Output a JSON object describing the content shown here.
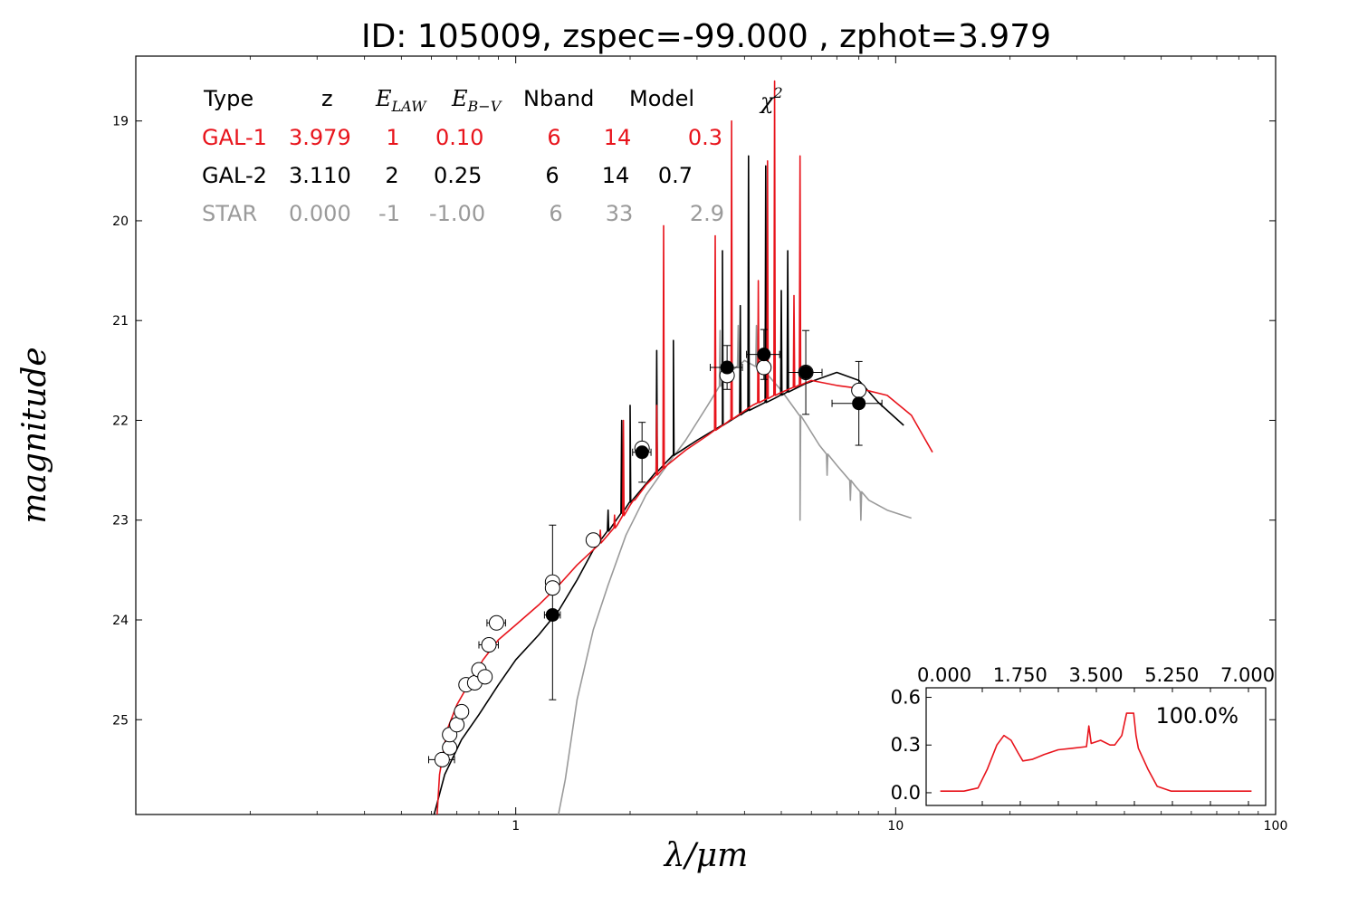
{
  "chart_data": {
    "type": "line",
    "title": "ID:  105009, zspec=-99.000 , zphot=3.979",
    "xlabel": "λ/μm",
    "ylabel": "magnitude",
    "xscale": "log",
    "xlim": [
      0.1,
      100
    ],
    "ylim": [
      25.95,
      18.35
    ],
    "x_ticks": [
      1,
      10,
      100
    ],
    "x_tick_labels": [
      "1",
      "10",
      "100"
    ],
    "y_ticks": [
      19,
      20,
      21,
      22,
      23,
      24,
      25
    ],
    "y_tick_labels": [
      "19",
      "20",
      "21",
      "22",
      "23",
      "24",
      "25"
    ],
    "colors": {
      "gal1": "#e8141c",
      "gal2": "#000000",
      "star": "#9a9a9a"
    },
    "table": {
      "headers": [
        "Type",
        "z",
        "E_LAW",
        "E_B-V",
        "Nband",
        "Model",
        "χ²"
      ],
      "header_math": {
        "elaw_main": "E",
        "elaw_sub": "LAW",
        "ebv_main": "E",
        "ebv_sub": "B−V",
        "chi_main": "χ",
        "chi_sup": "2"
      },
      "rows": [
        {
          "type": "GAL-1",
          "z": "3.979",
          "elaw": "1",
          "ebv": "0.10",
          "nband": "6",
          "model": "14",
          "chi2": "0.3",
          "color": "#e8141c"
        },
        {
          "type": "GAL-2",
          "z": "3.110",
          "elaw": "2",
          "ebv": "0.25",
          "nband": "6",
          "model": "14",
          "chi2": "0.7",
          "color": "#000000"
        },
        {
          "type": "STAR",
          "z": "0.000",
          "elaw": "-1",
          "ebv": "-1.00",
          "nband": "6",
          "model": "33",
          "chi2": "2.9",
          "color": "#9a9a9a"
        }
      ]
    },
    "series": [
      {
        "name": "GAL-1",
        "color": "#e8141c",
        "points": [
          [
            0.62,
            26.0
          ],
          [
            0.63,
            25.55
          ],
          [
            0.66,
            25.1
          ],
          [
            0.7,
            24.85
          ],
          [
            0.75,
            24.65
          ],
          [
            0.82,
            24.4
          ],
          [
            0.9,
            24.2
          ],
          [
            1.0,
            24.05
          ],
          [
            1.15,
            23.85
          ],
          [
            1.3,
            23.65
          ],
          [
            1.45,
            23.45
          ],
          [
            1.65,
            23.25
          ],
          [
            1.85,
            23.05
          ],
          [
            2.0,
            22.85
          ],
          [
            2.2,
            22.65
          ],
          [
            2.5,
            22.45
          ],
          [
            2.8,
            22.3
          ],
          [
            3.2,
            22.15
          ],
          [
            3.6,
            22.02
          ],
          [
            4.2,
            21.85
          ],
          [
            5.0,
            21.72
          ],
          [
            6.0,
            21.6
          ],
          [
            7.0,
            21.65
          ],
          [
            8.0,
            21.68
          ],
          [
            9.5,
            21.75
          ],
          [
            11.0,
            21.95
          ],
          [
            12.5,
            22.32
          ]
        ],
        "spikes": [
          [
            1.67,
            23.1
          ],
          [
            1.82,
            22.95
          ],
          [
            1.92,
            22.0
          ],
          [
            2.05,
            22.8
          ],
          [
            2.35,
            21.85
          ],
          [
            2.45,
            20.05
          ],
          [
            3.35,
            20.15
          ],
          [
            3.7,
            19.0
          ],
          [
            4.35,
            20.6
          ],
          [
            4.6,
            19.4
          ],
          [
            4.8,
            18.6
          ],
          [
            5.4,
            20.75
          ],
          [
            5.6,
            19.35
          ]
        ]
      },
      {
        "name": "GAL-2",
        "color": "#000000",
        "points": [
          [
            0.6,
            26.05
          ],
          [
            0.65,
            25.55
          ],
          [
            0.72,
            25.2
          ],
          [
            0.8,
            24.95
          ],
          [
            0.9,
            24.65
          ],
          [
            1.0,
            24.4
          ],
          [
            1.15,
            24.15
          ],
          [
            1.3,
            23.9
          ],
          [
            1.45,
            23.6
          ],
          [
            1.6,
            23.3
          ],
          [
            1.8,
            23.05
          ],
          [
            2.0,
            22.82
          ],
          [
            2.3,
            22.55
          ],
          [
            2.6,
            22.35
          ],
          [
            3.0,
            22.2
          ],
          [
            3.5,
            22.05
          ],
          [
            4.0,
            21.92
          ],
          [
            4.8,
            21.78
          ],
          [
            5.8,
            21.63
          ],
          [
            7.0,
            21.52
          ],
          [
            8.0,
            21.6
          ],
          [
            9.0,
            21.82
          ],
          [
            10.5,
            22.05
          ]
        ],
        "spikes": [
          [
            1.75,
            22.9
          ],
          [
            1.9,
            22.0
          ],
          [
            2.0,
            21.85
          ],
          [
            2.35,
            21.3
          ],
          [
            2.6,
            21.2
          ],
          [
            3.5,
            20.3
          ],
          [
            3.9,
            20.85
          ],
          [
            4.1,
            19.35
          ],
          [
            4.55,
            19.45
          ],
          [
            5.0,
            20.7
          ],
          [
            5.2,
            20.3
          ]
        ]
      },
      {
        "name": "STAR",
        "color": "#9a9a9a",
        "points": [
          [
            1.28,
            26.05
          ],
          [
            1.35,
            25.6
          ],
          [
            1.45,
            24.8
          ],
          [
            1.6,
            24.1
          ],
          [
            1.75,
            23.65
          ],
          [
            1.95,
            23.15
          ],
          [
            2.2,
            22.75
          ],
          [
            2.5,
            22.45
          ],
          [
            2.8,
            22.2
          ],
          [
            3.2,
            21.85
          ],
          [
            3.6,
            21.55
          ],
          [
            4.0,
            21.4
          ],
          [
            4.5,
            21.5
          ],
          [
            5.0,
            21.7
          ],
          [
            5.6,
            21.95
          ],
          [
            6.3,
            22.25
          ],
          [
            7.0,
            22.45
          ],
          [
            7.8,
            22.65
          ],
          [
            8.5,
            22.8
          ],
          [
            9.5,
            22.9
          ],
          [
            11.0,
            22.98
          ]
        ],
        "spikes": [
          [
            3.45,
            21.1
          ],
          [
            3.85,
            21.05
          ],
          [
            4.3,
            21.05
          ],
          [
            5.6,
            23.0
          ],
          [
            6.6,
            22.55
          ],
          [
            7.6,
            22.8
          ],
          [
            8.1,
            23.0
          ]
        ]
      }
    ],
    "observed_photometry": {
      "marker": "filled",
      "points": [
        {
          "x": 1.25,
          "y": 23.95,
          "yerr_lo": 0.85,
          "yerr_hi": 0.9,
          "xerr": 0.06
        },
        {
          "x": 2.15,
          "y": 22.32,
          "yerr_lo": 0.3,
          "yerr_hi": 0.3,
          "xerr": 0.12
        },
        {
          "x": 3.6,
          "y": 21.47,
          "yerr_lo": 0.22,
          "yerr_hi": 0.22,
          "xerr": 0.35
        },
        {
          "x": 4.5,
          "y": 21.34,
          "yerr_lo": 0.25,
          "yerr_hi": 0.25,
          "xerr": 0.45
        },
        {
          "x": 5.8,
          "y": 21.52,
          "yerr_lo": 0.42,
          "yerr_hi": 0.42,
          "xerr": 0.6
        },
        {
          "x": 8.0,
          "y": 21.83,
          "yerr_lo": 0.42,
          "yerr_hi": 0.42,
          "xerr": 1.2
        }
      ]
    },
    "model_photometry": {
      "marker": "open",
      "points": [
        {
          "x": 0.64,
          "y": 25.4,
          "xerr": 0.05
        },
        {
          "x": 0.67,
          "y": 25.28
        },
        {
          "x": 0.67,
          "y": 25.15
        },
        {
          "x": 0.7,
          "y": 25.05
        },
        {
          "x": 0.72,
          "y": 24.92
        },
        {
          "x": 0.74,
          "y": 24.65
        },
        {
          "x": 0.78,
          "y": 24.63
        },
        {
          "x": 0.8,
          "y": 24.5
        },
        {
          "x": 0.83,
          "y": 24.57
        },
        {
          "x": 0.85,
          "y": 24.25,
          "xerr": 0.05
        },
        {
          "x": 0.89,
          "y": 24.03,
          "xerr": 0.05
        },
        {
          "x": 1.25,
          "y": 23.62
        },
        {
          "x": 1.25,
          "y": 23.68
        },
        {
          "x": 1.6,
          "y": 23.2
        },
        {
          "x": 2.15,
          "y": 22.28
        },
        {
          "x": 3.6,
          "y": 21.55
        },
        {
          "x": 4.5,
          "y": 21.47
        },
        {
          "x": 5.8,
          "y": 21.52
        },
        {
          "x": 8.0,
          "y": 21.7
        }
      ]
    },
    "inset": {
      "top_tick_labels": [
        "0.000",
        "1.750",
        "3.500",
        "5.250",
        "7.000"
      ],
      "top_ticks": [
        0,
        1.75,
        3.5,
        5.25,
        7.0
      ],
      "y_ticks": [
        0.0,
        0.3,
        0.6
      ],
      "y_tick_labels": [
        "0.0",
        "0.3",
        "0.6"
      ],
      "xlim": [
        -0.2,
        7.0
      ],
      "ylim": [
        -0.08,
        0.66
      ],
      "annotation": "100.0%",
      "color": "#e8141c",
      "pdf": [
        [
          0.1,
          0.01
        ],
        [
          0.6,
          0.01
        ],
        [
          0.9,
          0.03
        ],
        [
          1.1,
          0.15
        ],
        [
          1.3,
          0.3
        ],
        [
          1.45,
          0.36
        ],
        [
          1.6,
          0.33
        ],
        [
          1.75,
          0.25
        ],
        [
          1.85,
          0.2
        ],
        [
          2.05,
          0.21
        ],
        [
          2.3,
          0.24
        ],
        [
          2.6,
          0.27
        ],
        [
          2.9,
          0.28
        ],
        [
          3.2,
          0.29
        ],
        [
          3.25,
          0.42
        ],
        [
          3.3,
          0.31
        ],
        [
          3.5,
          0.33
        ],
        [
          3.7,
          0.3
        ],
        [
          3.8,
          0.3
        ],
        [
          3.95,
          0.36
        ],
        [
          4.05,
          0.5
        ],
        [
          4.2,
          0.5
        ],
        [
          4.25,
          0.36
        ],
        [
          4.3,
          0.28
        ],
        [
          4.5,
          0.15
        ],
        [
          4.7,
          0.04
        ],
        [
          5.0,
          0.01
        ],
        [
          6.0,
          0.01
        ],
        [
          6.7,
          0.01
        ]
      ]
    }
  }
}
